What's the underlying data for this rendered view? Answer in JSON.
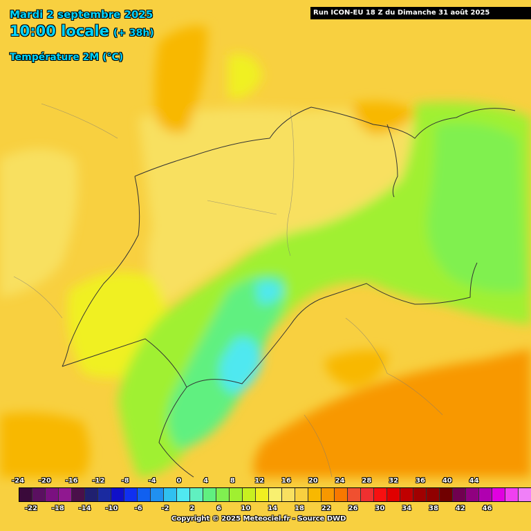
{
  "header": {
    "date_line": "Mardi 2 septembre 2025",
    "time_main": "10:00 locale",
    "time_offset": "(+ 38h)",
    "parameter": "Température 2M (°C)",
    "run_info": "Run ICON-EU 18 Z du Dimanche 31 août 2025"
  },
  "legend": {
    "top_labels": [
      "-24",
      "-20",
      "-16",
      "-12",
      "-8",
      "-4",
      "0",
      "4",
      "8",
      "12",
      "16",
      "20",
      "24",
      "28",
      "32",
      "36",
      "40",
      "44"
    ],
    "bottom_labels": [
      "-22",
      "-18",
      "-14",
      "-10",
      "-6",
      "-2",
      "2",
      "6",
      "10",
      "14",
      "18",
      "22",
      "26",
      "30",
      "34",
      "38",
      "42",
      "46"
    ],
    "colors": [
      "#3a0a3a",
      "#5a1060",
      "#7a1080",
      "#901890",
      "#4a104a",
      "#202070",
      "#1a2aa0",
      "#1010c8",
      "#1030f0",
      "#1060f0",
      "#2090f0",
      "#30c0f0",
      "#50e8f0",
      "#60f0c0",
      "#60f080",
      "#80f050",
      "#a0f030",
      "#c8f020",
      "#f0f020",
      "#f8f070",
      "#f8e060",
      "#f8d040",
      "#f8b800",
      "#f89800",
      "#f87800",
      "#f05030",
      "#f03030",
      "#f81010",
      "#e00000",
      "#c00000",
      "#a00000",
      "#900000",
      "#700000",
      "#700050",
      "#900080",
      "#b000b0",
      "#e000e0",
      "#f040f0",
      "#f080f8"
    ]
  },
  "copyright": "Copyright © 2025 Meteociel.fr - Source DWD"
}
